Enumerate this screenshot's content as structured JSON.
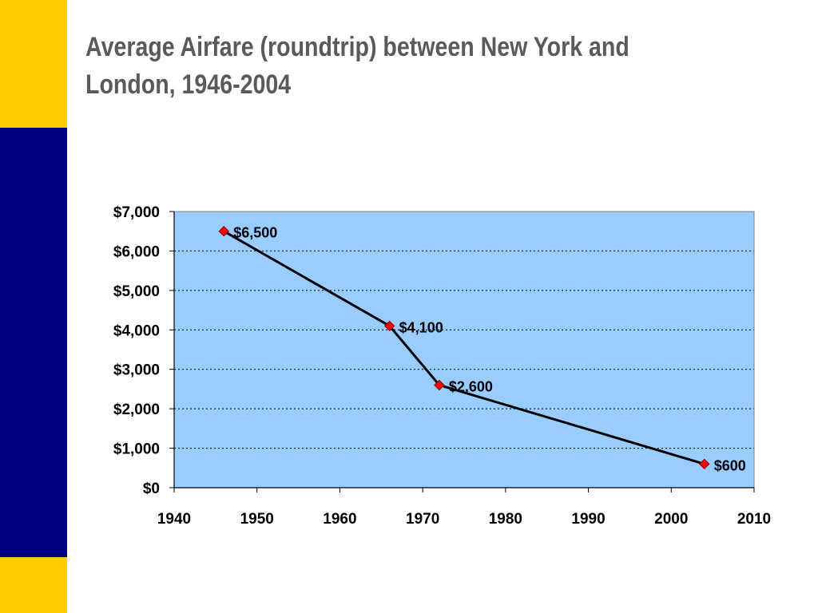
{
  "slide": {
    "title": "Average Airfare (roundtrip) between New York and London, 1946-2004",
    "band_colors": {
      "top": "#ffcc00",
      "middle": "#000080",
      "bottom": "#ffcc00"
    }
  },
  "chart_data": {
    "type": "line",
    "title": "Average Airfare (roundtrip) between New York and London, 1946-2004",
    "xlabel": "",
    "ylabel": "",
    "x": [
      1946,
      1966,
      1972,
      2004
    ],
    "series": [
      {
        "values": [
          6500,
          4100,
          2600,
          600
        ],
        "data_labels": [
          "$6,500",
          "$4,100",
          "$2,600",
          "$600"
        ]
      }
    ],
    "xlim": [
      1940,
      2010
    ],
    "ylim": [
      0,
      7000
    ],
    "x_ticks": [
      1940,
      1950,
      1960,
      1970,
      1980,
      1990,
      2000,
      2010
    ],
    "x_tick_labels": [
      "1940",
      "1950",
      "1960",
      "1970",
      "1980",
      "1990",
      "2000",
      "2010"
    ],
    "y_ticks": [
      0,
      1000,
      2000,
      3000,
      4000,
      5000,
      6000,
      7000
    ],
    "y_tick_labels": [
      "$0",
      "$1,000",
      "$2,000",
      "$3,000",
      "$4,000",
      "$5,000",
      "$6,000",
      "$7,000"
    ],
    "grid": "horizontal dotted",
    "legend": "none",
    "colors": {
      "plot_background": "#99ccff",
      "line": "#000000",
      "marker": "#ff0000"
    }
  }
}
